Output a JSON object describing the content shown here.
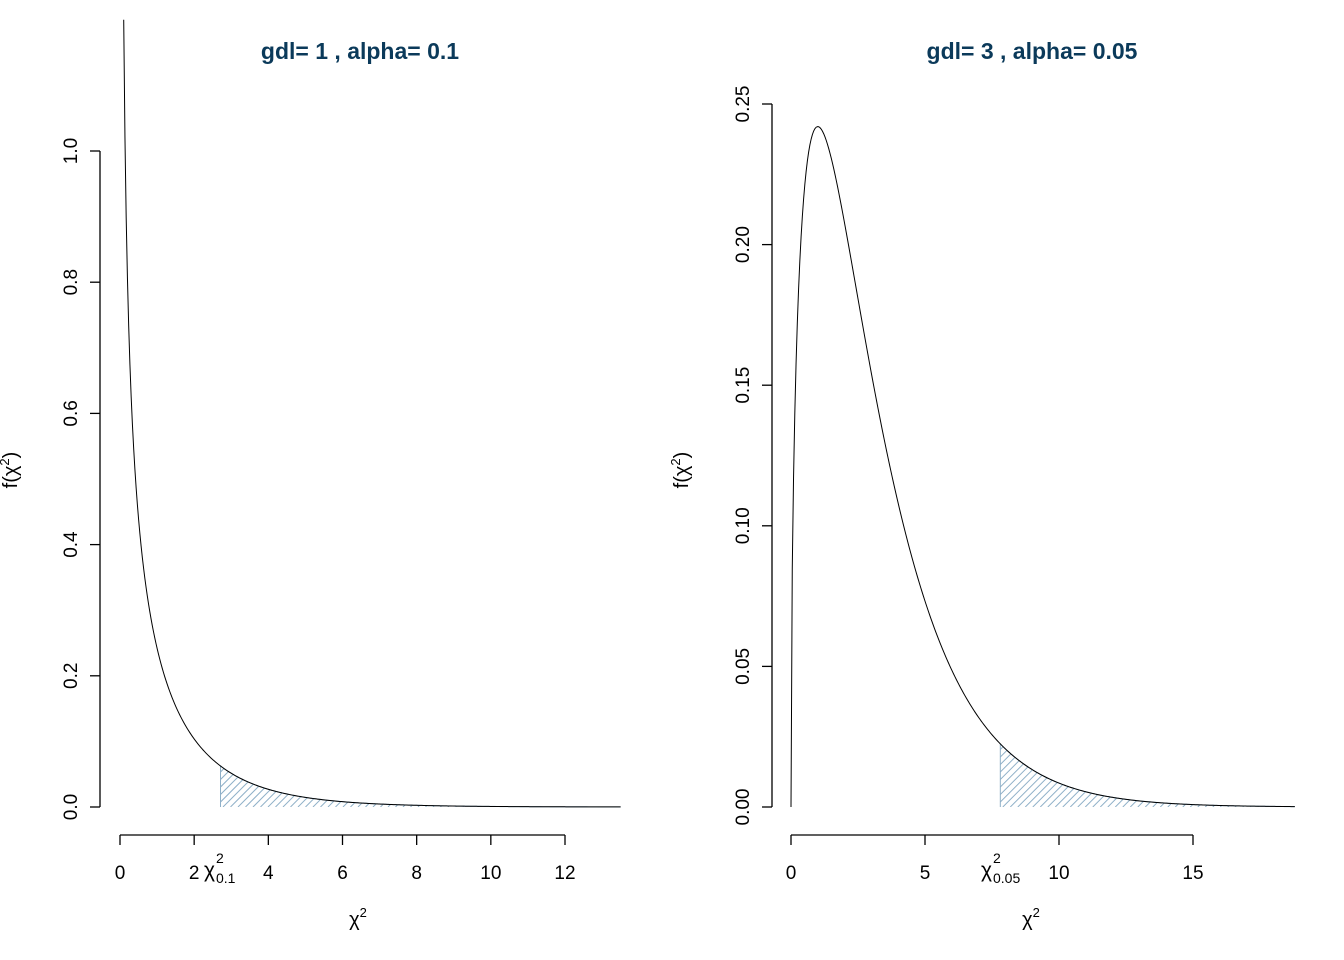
{
  "chart_data": [
    {
      "type": "line",
      "title": "gdl= 1 , alpha= 0.1",
      "xlabel": "χ",
      "xlabel_sup": "2",
      "ylabel": "f(χ",
      "ylabel_sup": "2",
      "ylabel_close": ")",
      "df": 1,
      "alpha": 0.1,
      "critical_value": 2.71,
      "critical_label": {
        "base": "χ",
        "sup": "2",
        "sub": "0.1"
      },
      "xlim": [
        0,
        13.5
      ],
      "ylim": [
        0,
        1.05
      ],
      "x_ticks": [
        0,
        2,
        4,
        6,
        8,
        10,
        12
      ],
      "x_tick_labels": [
        "0",
        "2",
        "4",
        "6",
        "8",
        "10",
        "12"
      ],
      "y_ticks": [
        0.0,
        0.2,
        0.4,
        0.6,
        0.8,
        1.0
      ],
      "y_tick_labels": [
        "0.0",
        "0.2",
        "0.4",
        "0.6",
        "0.8",
        "1.0"
      ],
      "x_start": 0.1,
      "x_end": 13.5,
      "tail_color": "#8fb0c8",
      "curve_color": "#000000"
    },
    {
      "type": "line",
      "title": "gdl= 3 , alpha= 0.05",
      "xlabel": "χ",
      "xlabel_sup": "2",
      "ylabel": "f(χ",
      "ylabel_sup": "2",
      "ylabel_close": ")",
      "df": 3,
      "alpha": 0.05,
      "critical_value": 7.81,
      "critical_label": {
        "base": "χ",
        "sup": "2",
        "sub": "0.05"
      },
      "xlim": [
        0,
        18.8
      ],
      "ylim": [
        0,
        0.25
      ],
      "x_ticks": [
        0,
        5,
        10,
        15
      ],
      "x_tick_labels": [
        "0",
        "5",
        "10",
        "15"
      ],
      "y_ticks": [
        0.0,
        0.05,
        0.1,
        0.15,
        0.2,
        0.25
      ],
      "y_tick_labels": [
        "0.00",
        "0.05",
        "0.10",
        "0.15",
        "0.20",
        "0.25"
      ],
      "x_start": 0,
      "x_end": 18.8,
      "tail_color": "#8fb0c8",
      "curve_color": "#000000"
    }
  ]
}
